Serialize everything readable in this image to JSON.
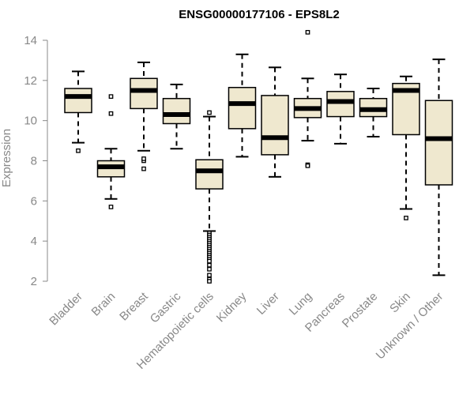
{
  "chart_data": {
    "type": "box",
    "title": "ENSG00000177106 - EPS8L2",
    "xlabel": "",
    "ylabel": "Expression",
    "ylim": [
      2,
      14
    ],
    "yticks": [
      "2",
      "4",
      "6",
      "8",
      "10",
      "12",
      "14"
    ],
    "box_fill": "#efe8cf",
    "box_stroke": "#000000",
    "axis_color": "#888888",
    "categories": [
      "Bladder",
      "Brain",
      "Breast",
      "Gastric",
      "Hematopoietic cells",
      "Kidney",
      "Liver",
      "Lung",
      "Pancreas",
      "Prostate",
      "Skin",
      "Unknown / Other"
    ],
    "boxes": [
      {
        "low": 8.9,
        "q1": 10.4,
        "median": 11.2,
        "q3": 11.6,
        "high": 12.45,
        "outliers": [
          8.5
        ]
      },
      {
        "low": 6.1,
        "q1": 7.2,
        "median": 7.7,
        "q3": 8.0,
        "high": 8.6,
        "outliers": [
          5.7,
          10.35,
          11.2
        ]
      },
      {
        "low": 8.5,
        "q1": 10.6,
        "median": 11.5,
        "q3": 12.1,
        "high": 12.9,
        "outliers": [
          7.6,
          8.0,
          8.1
        ]
      },
      {
        "low": 8.6,
        "q1": 9.85,
        "median": 10.3,
        "q3": 11.1,
        "high": 11.8,
        "outliers": []
      },
      {
        "low": 4.5,
        "q1": 6.6,
        "median": 7.5,
        "q3": 8.05,
        "high": 10.2,
        "outliers": [
          10.4,
          4.4,
          4.3,
          4.2,
          4.1,
          4.0,
          3.9,
          3.8,
          3.7,
          3.6,
          3.5,
          3.4,
          3.3,
          3.2,
          3.1,
          3.0,
          2.8,
          2.6,
          2.3,
          2.1,
          2.0
        ]
      },
      {
        "low": 8.2,
        "q1": 9.6,
        "median": 10.85,
        "q3": 11.65,
        "high": 13.3,
        "outliers": []
      },
      {
        "low": 7.2,
        "q1": 8.3,
        "median": 9.15,
        "q3": 11.25,
        "high": 12.65,
        "outliers": []
      },
      {
        "low": 9.0,
        "q1": 10.15,
        "median": 10.6,
        "q3": 11.1,
        "high": 12.1,
        "outliers": [
          7.8,
          7.75,
          14.4
        ]
      },
      {
        "low": 8.85,
        "q1": 10.2,
        "median": 10.95,
        "q3": 11.45,
        "high": 12.3,
        "outliers": []
      },
      {
        "low": 9.2,
        "q1": 10.2,
        "median": 10.55,
        "q3": 11.1,
        "high": 11.6,
        "outliers": []
      },
      {
        "low": 5.6,
        "q1": 9.3,
        "median": 11.5,
        "q3": 11.85,
        "high": 12.2,
        "outliers": [
          5.15
        ]
      },
      {
        "low": 2.3,
        "q1": 6.8,
        "median": 9.1,
        "q3": 11.0,
        "high": 13.05,
        "outliers": []
      }
    ]
  }
}
